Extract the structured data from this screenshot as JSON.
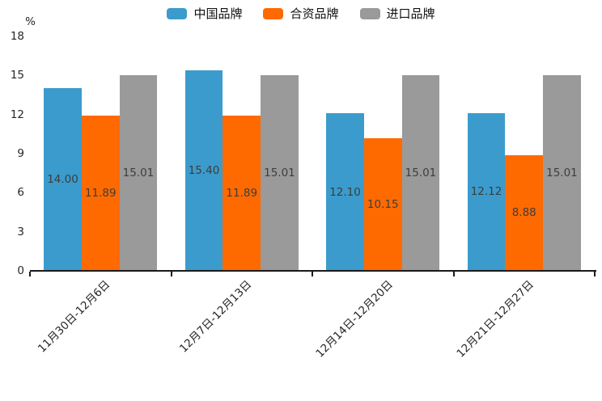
{
  "chart_data": {
    "type": "bar",
    "title": "",
    "xlabel": "",
    "ylabel": "%",
    "categories": [
      "11月30日-12月6日",
      "12月7日-12月13日",
      "12月14日-12月20日",
      "12月21日-12月27日"
    ],
    "series": [
      {
        "name": "中国品牌",
        "color": "#3B9BCD",
        "values": [
          14.0,
          15.4,
          12.1,
          12.12
        ]
      },
      {
        "name": "合资品牌",
        "color": "#FF6A00",
        "values": [
          11.89,
          11.89,
          10.15,
          8.88
        ]
      },
      {
        "name": "进口品牌",
        "color": "#9A9A9A",
        "values": [
          15.01,
          15.01,
          15.01,
          15.01
        ]
      }
    ],
    "value_labels": [
      [
        "14.00",
        "15.40",
        "12.10",
        "12.12"
      ],
      [
        "11.89",
        "11.89",
        "10.15",
        "8.88"
      ],
      [
        "15.01",
        "15.01",
        "15.01",
        "15.01"
      ]
    ],
    "y_ticks": [
      "0",
      "3",
      "6",
      "9",
      "12",
      "15",
      "18"
    ],
    "ylim": [
      0,
      18
    ],
    "grid": false,
    "legend_position": "top",
    "axis_color": "#1a1a1a",
    "value_label_color": "#3d3d3d"
  }
}
